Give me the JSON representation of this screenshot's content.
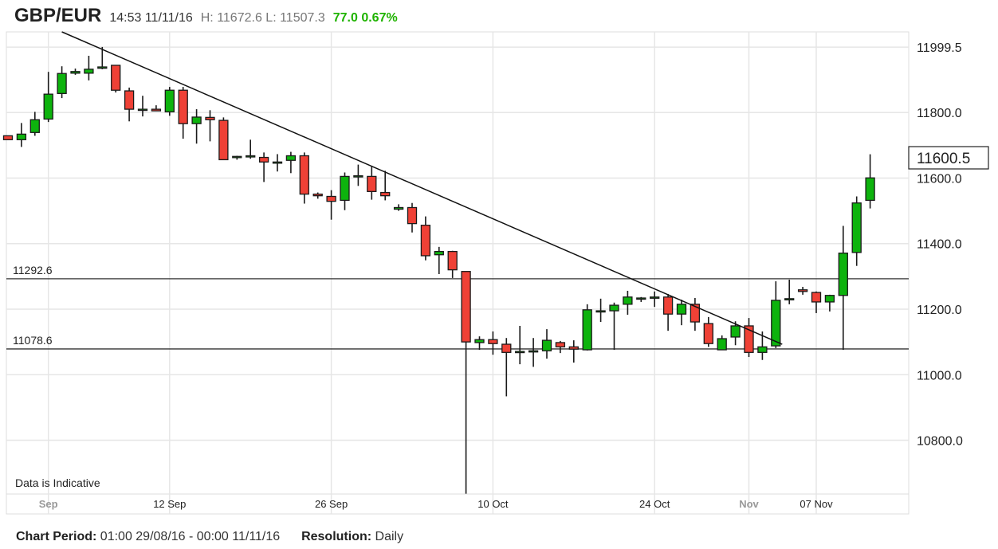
{
  "header": {
    "pair": "GBP/EUR",
    "time": "14:53 11/11/16",
    "high_low": "H: 11672.6 L: 11507.3",
    "change": "77.0 0.67%",
    "change_color": "#1fb300"
  },
  "footer": {
    "period_label": "Chart Period:",
    "period_value": "01:00 29/08/16 - 00:00 11/11/16",
    "resolution_label": "Resolution:",
    "resolution_value": "Daily"
  },
  "chart_data": {
    "type": "candlestick",
    "title": "",
    "note": "Data is Indicative",
    "ylim": [
      10636,
      12046
    ],
    "grid": true,
    "y_axis_position": "right",
    "y_ticks": [
      "11999.5",
      "11800.0",
      "11600.0",
      "11400.0",
      "11200.0",
      "11000.0",
      "10800.0"
    ],
    "y_tick_values": [
      11999.5,
      11800,
      11600,
      11400,
      11200,
      11000,
      10800
    ],
    "x_ticks": [
      {
        "label": "Sep",
        "date": "2016-09-01",
        "muted": true
      },
      {
        "label": "12 Sep",
        "date": "2016-09-12",
        "muted": false
      },
      {
        "label": "26 Sep",
        "date": "2016-09-26",
        "muted": false
      },
      {
        "label": "10 Oct",
        "date": "2016-10-10",
        "muted": false
      },
      {
        "label": "24 Oct",
        "date": "2016-10-24",
        "muted": false
      },
      {
        "label": "Nov",
        "date": "2016-11-01",
        "muted": true
      },
      {
        "label": "07 Nov",
        "date": "2016-11-07",
        "muted": false
      }
    ],
    "last_price": "11600.5",
    "horizontal_lines": [
      {
        "label": "11292.6",
        "value": 11292.6
      },
      {
        "label": "11078.6",
        "value": 11078.6
      }
    ],
    "trendline": {
      "from": {
        "date": "2016-09-02",
        "price": 12046
      },
      "to": {
        "date": "2016-11-03",
        "price": 11093
      }
    },
    "colors": {
      "up": "#0db30d",
      "down": "#ef4136",
      "outline": "#1a1a1a"
    },
    "candles": [
      {
        "date": "2016-08-29",
        "o": 11729,
        "h": 11729,
        "l": 11717,
        "c": 11717
      },
      {
        "date": "2016-08-30",
        "o": 11717,
        "h": 11768,
        "l": 11695,
        "c": 11734
      },
      {
        "date": "2016-08-31",
        "o": 11739,
        "h": 11802,
        "l": 11729,
        "c": 11778
      },
      {
        "date": "2016-09-01",
        "o": 11780,
        "h": 11924,
        "l": 11771,
        "c": 11856
      },
      {
        "date": "2016-09-02",
        "o": 11858,
        "h": 11941,
        "l": 11844,
        "c": 11919
      },
      {
        "date": "2016-09-04",
        "o": 11920,
        "h": 11934,
        "l": 11915,
        "c": 11925
      },
      {
        "date": "2016-09-05",
        "o": 11920,
        "h": 11973,
        "l": 11898,
        "c": 11932
      },
      {
        "date": "2016-09-06",
        "o": 11935,
        "h": 12000,
        "l": 11932,
        "c": 11939
      },
      {
        "date": "2016-09-07",
        "o": 11944,
        "h": 11944,
        "l": 11861,
        "c": 11868
      },
      {
        "date": "2016-09-08",
        "o": 11866,
        "h": 11876,
        "l": 11773,
        "c": 11810
      },
      {
        "date": "2016-09-09",
        "o": 11810,
        "h": 11851,
        "l": 11788,
        "c": 11810
      },
      {
        "date": "2016-09-11",
        "o": 11810,
        "h": 11822,
        "l": 11805,
        "c": 11805
      },
      {
        "date": "2016-09-12",
        "o": 11802,
        "h": 11878,
        "l": 11790,
        "c": 11868
      },
      {
        "date": "2016-09-13",
        "o": 11868,
        "h": 11878,
        "l": 11720,
        "c": 11766
      },
      {
        "date": "2016-09-14",
        "o": 11766,
        "h": 11810,
        "l": 11705,
        "c": 11786
      },
      {
        "date": "2016-09-15",
        "o": 11785,
        "h": 11807,
        "l": 11712,
        "c": 11778
      },
      {
        "date": "2016-09-16",
        "o": 11776,
        "h": 11785,
        "l": 11656,
        "c": 11656
      },
      {
        "date": "2016-09-18",
        "o": 11666,
        "h": 11668,
        "l": 11656,
        "c": 11666
      },
      {
        "date": "2016-09-19",
        "o": 11668,
        "h": 11717,
        "l": 11659,
        "c": 11668
      },
      {
        "date": "2016-09-20",
        "o": 11663,
        "h": 11678,
        "l": 11588,
        "c": 11649
      },
      {
        "date": "2016-09-21",
        "o": 11649,
        "h": 11673,
        "l": 11620,
        "c": 11649
      },
      {
        "date": "2016-09-22",
        "o": 11654,
        "h": 11680,
        "l": 11615,
        "c": 11668
      },
      {
        "date": "2016-09-23",
        "o": 11668,
        "h": 11678,
        "l": 11522,
        "c": 11551
      },
      {
        "date": "2016-09-25",
        "o": 11551,
        "h": 11556,
        "l": 11537,
        "c": 11546
      },
      {
        "date": "2016-09-26",
        "o": 11544,
        "h": 11563,
        "l": 11473,
        "c": 11529
      },
      {
        "date": "2016-09-27",
        "o": 11532,
        "h": 11617,
        "l": 11502,
        "c": 11605
      },
      {
        "date": "2016-09-28",
        "o": 11607,
        "h": 11641,
        "l": 11576,
        "c": 11607
      },
      {
        "date": "2016-09-29",
        "o": 11605,
        "h": 11637,
        "l": 11534,
        "c": 11559
      },
      {
        "date": "2016-09-30",
        "o": 11556,
        "h": 11622,
        "l": 11532,
        "c": 11546
      },
      {
        "date": "2016-10-02",
        "o": 11505,
        "h": 11520,
        "l": 11500,
        "c": 11510
      },
      {
        "date": "2016-10-03",
        "o": 11510,
        "h": 11524,
        "l": 11434,
        "c": 11461
      },
      {
        "date": "2016-10-04",
        "o": 11456,
        "h": 11483,
        "l": 11349,
        "c": 11363
      },
      {
        "date": "2016-10-05",
        "o": 11366,
        "h": 11390,
        "l": 11307,
        "c": 11376
      },
      {
        "date": "2016-10-06",
        "o": 11376,
        "h": 11378,
        "l": 11295,
        "c": 11320
      },
      {
        "date": "2016-10-07",
        "o": 11315,
        "h": 11315,
        "l": 10637,
        "c": 11100
      },
      {
        "date": "2016-10-09",
        "o": 11098,
        "h": 11117,
        "l": 11076,
        "c": 11107
      },
      {
        "date": "2016-10-10",
        "o": 11107,
        "h": 11132,
        "l": 11061,
        "c": 11095
      },
      {
        "date": "2016-10-11",
        "o": 11093,
        "h": 11112,
        "l": 10934,
        "c": 11068
      },
      {
        "date": "2016-10-12",
        "o": 11071,
        "h": 11149,
        "l": 11032,
        "c": 11071
      },
      {
        "date": "2016-10-13",
        "o": 11073,
        "h": 11112,
        "l": 11024,
        "c": 11073
      },
      {
        "date": "2016-10-14",
        "o": 11073,
        "h": 11139,
        "l": 11049,
        "c": 11105
      },
      {
        "date": "2016-10-16",
        "o": 11098,
        "h": 11103,
        "l": 11066,
        "c": 11085
      },
      {
        "date": "2016-10-17",
        "o": 11085,
        "h": 11105,
        "l": 11037,
        "c": 11078
      },
      {
        "date": "2016-10-18",
        "o": 11076,
        "h": 11215,
        "l": 11074,
        "c": 11198
      },
      {
        "date": "2016-10-19",
        "o": 11195,
        "h": 11232,
        "l": 11161,
        "c": 11195
      },
      {
        "date": "2016-10-20",
        "o": 11195,
        "h": 11220,
        "l": 11076,
        "c": 11212
      },
      {
        "date": "2016-10-21",
        "o": 11215,
        "h": 11256,
        "l": 11183,
        "c": 11237
      },
      {
        "date": "2016-10-23",
        "o": 11234,
        "h": 11237,
        "l": 11222,
        "c": 11234
      },
      {
        "date": "2016-10-24",
        "o": 11234,
        "h": 11254,
        "l": 11207,
        "c": 11237
      },
      {
        "date": "2016-10-25",
        "o": 11237,
        "h": 11246,
        "l": 11134,
        "c": 11185
      },
      {
        "date": "2016-10-26",
        "o": 11185,
        "h": 11229,
        "l": 11151,
        "c": 11215
      },
      {
        "date": "2016-10-27",
        "o": 11215,
        "h": 11234,
        "l": 11134,
        "c": 11161
      },
      {
        "date": "2016-10-28",
        "o": 11156,
        "h": 11176,
        "l": 11085,
        "c": 11095
      },
      {
        "date": "2016-10-30",
        "o": 11076,
        "h": 11120,
        "l": 11076,
        "c": 11110
      },
      {
        "date": "2016-10-31",
        "o": 11115,
        "h": 11163,
        "l": 11090,
        "c": 11149
      },
      {
        "date": "2016-11-01",
        "o": 11149,
        "h": 11173,
        "l": 11054,
        "c": 11068
      },
      {
        "date": "2016-11-02",
        "o": 11068,
        "h": 11132,
        "l": 11045,
        "c": 11085
      },
      {
        "date": "2016-11-03",
        "o": 11088,
        "h": 11285,
        "l": 11081,
        "c": 11227
      },
      {
        "date": "2016-11-04",
        "o": 11232,
        "h": 11290,
        "l": 11215,
        "c": 11232
      },
      {
        "date": "2016-11-06",
        "o": 11259,
        "h": 11268,
        "l": 11244,
        "c": 11254
      },
      {
        "date": "2016-11-07",
        "o": 11251,
        "h": 11254,
        "l": 11188,
        "c": 11222
      },
      {
        "date": "2016-11-08",
        "o": 11222,
        "h": 11244,
        "l": 11193,
        "c": 11242
      },
      {
        "date": "2016-11-09",
        "o": 11242,
        "h": 11454,
        "l": 11076,
        "c": 11371
      },
      {
        "date": "2016-11-10",
        "o": 11373,
        "h": 11544,
        "l": 11332,
        "c": 11524
      },
      {
        "date": "2016-11-11",
        "o": 11532,
        "h": 11672.6,
        "l": 11507.3,
        "c": 11600.5
      }
    ]
  }
}
